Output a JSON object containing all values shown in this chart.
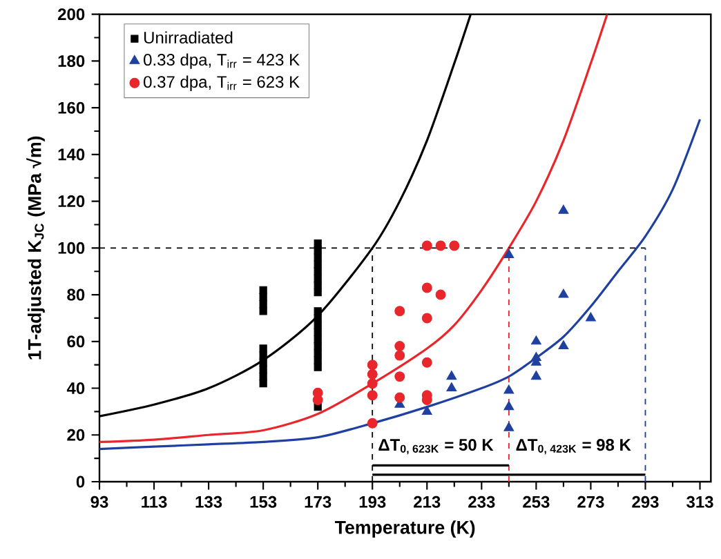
{
  "chart_data": {
    "type": "scatter",
    "xlabel": "Temperature (K)",
    "ylabel": "1T-adjusted K$_{JC}$ (MPa √m)",
    "xlim": [
      93,
      317
    ],
    "ylim": [
      0,
      200
    ],
    "xticks": [
      93,
      113,
      133,
      153,
      173,
      193,
      213,
      233,
      253,
      273,
      293,
      313
    ],
    "yticks": [
      0,
      20,
      40,
      60,
      80,
      100,
      120,
      140,
      160,
      180,
      200
    ],
    "legend": "top left",
    "grid": false,
    "series": [
      {
        "name": "Unirradiated",
        "type": "scatter",
        "marker": "square",
        "color": "#000000",
        "x": [
          153,
          153,
          153,
          153,
          153,
          153,
          153,
          153,
          153,
          153,
          173,
          173,
          173,
          173,
          173,
          173,
          173,
          173,
          173,
          173,
          173,
          173,
          173,
          173,
          173,
          173,
          173,
          173
        ],
        "values": [
          42,
          45,
          48,
          51,
          54,
          57,
          73,
          76,
          79,
          82,
          32,
          49,
          52,
          55,
          58,
          61,
          64,
          67,
          70,
          73,
          81,
          84,
          87,
          90,
          93,
          96,
          99,
          102
        ]
      },
      {
        "name": "0.33 dpa, T$_{irr}$ = 423 K",
        "type": "scatter",
        "marker": "triangle",
        "color": "#2040a0",
        "x": [
          203,
          213,
          222,
          222,
          243,
          243,
          243,
          243,
          253,
          253,
          253,
          253,
          263,
          263,
          263,
          273
        ],
        "values": [
          33,
          30,
          45,
          40,
          97,
          39,
          32,
          23,
          60,
          53,
          51,
          45,
          116,
          80,
          58,
          70
        ]
      },
      {
        "name": "0.37 dpa, T$_{irr}$ = 623 K",
        "type": "scatter",
        "marker": "circle",
        "color": "#e8262b",
        "x": [
          173,
          173,
          193,
          193,
          193,
          193,
          193,
          203,
          203,
          203,
          203,
          203,
          213,
          213,
          213,
          213,
          213,
          213,
          218,
          218,
          223
        ],
        "values": [
          35,
          38,
          50,
          46,
          42,
          37,
          25,
          73,
          58,
          54,
          45,
          36,
          101,
          83,
          70,
          51,
          37,
          35,
          101,
          80,
          101
        ]
      },
      {
        "type": "line",
        "marker": "none",
        "line_style": "solid",
        "color": "#000000",
        "x": [
          93,
          113,
          133,
          153,
          173,
          193,
          203,
          213,
          223,
          229
        ],
        "values": [
          28,
          33,
          40,
          52,
          71,
          100,
          120,
          146,
          179,
          200
        ]
      },
      {
        "type": "line",
        "marker": "none",
        "line_style": "solid",
        "color": "#e8262b",
        "x": [
          93,
          113,
          133,
          153,
          173,
          193,
          213,
          223,
          233,
          243,
          253,
          263,
          273,
          279
        ],
        "values": [
          17,
          18,
          20,
          22,
          29,
          42,
          57,
          67,
          82,
          100,
          120,
          146,
          179,
          200
        ]
      },
      {
        "type": "line",
        "marker": "none",
        "line_style": "solid",
        "color": "#2040a0",
        "x": [
          93,
          113,
          133,
          153,
          173,
          193,
          213,
          233,
          243,
          253,
          263,
          273,
          283,
          293,
          303,
          313
        ],
        "values": [
          14,
          15,
          16,
          17,
          19,
          25,
          32,
          40,
          45,
          53,
          62,
          75,
          90,
          105,
          125,
          155
        ]
      },
      {
        "type": "line",
        "marker": "none",
        "line_style": "dashed",
        "color": "#000000",
        "x": [
          93,
          293
        ],
        "values": [
          100,
          100
        ]
      },
      {
        "type": "line",
        "marker": "none",
        "line_style": "dashed",
        "color": "#000000",
        "x": [
          193,
          193
        ],
        "values": [
          0,
          100
        ]
      },
      {
        "type": "line",
        "marker": "none",
        "line_style": "dashed",
        "color": "#e8262b",
        "x": [
          243,
          243
        ],
        "values": [
          0,
          100
        ]
      },
      {
        "type": "line",
        "marker": "none",
        "line_style": "dashed",
        "color": "#2040a0",
        "x": [
          293,
          293
        ],
        "values": [
          0,
          100
        ]
      },
      {
        "type": "line",
        "marker": "none",
        "line_style": "solid",
        "color": "#000000",
        "x": [
          193,
          243
        ],
        "values": [
          7,
          7
        ]
      },
      {
        "type": "line",
        "marker": "none",
        "line_style": "solid",
        "color": "#000000",
        "x": [
          193,
          293
        ],
        "values": [
          3,
          3
        ]
      }
    ],
    "annotations": [
      "ΔT$_{0, 623K}$ = 50 K",
      "ΔT$_{0, 423K}$ = 98 K"
    ]
  }
}
